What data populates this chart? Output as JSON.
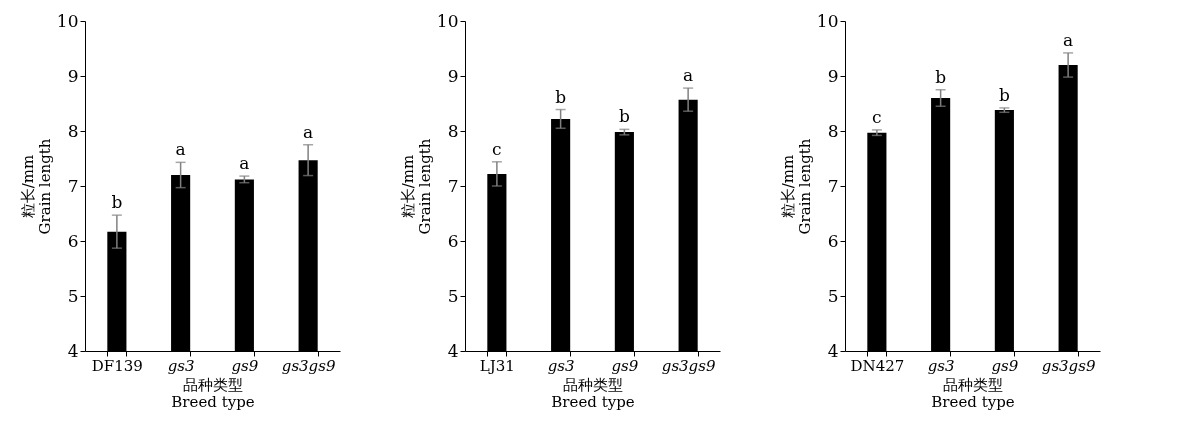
{
  "chart_data": [
    {
      "type": "bar",
      "categories": [
        "DF139",
        "gs3",
        "gs9",
        "gs3gs9"
      ],
      "values": [
        6.17,
        7.2,
        7.12,
        7.47
      ],
      "errors": [
        0.3,
        0.23,
        0.06,
        0.28
      ],
      "color": "#000000",
      "xlabel": [
        "品种类型",
        "Breed type"
      ],
      "ylabel": [
        "粒长/mm",
        "Grain length"
      ],
      "ylim": [
        4,
        10
      ],
      "yticks": [
        4,
        5,
        6,
        7,
        8,
        9,
        10
      ],
      "grid": false,
      "annotations": [
        {
          "text": "b",
          "x": "DF139",
          "y": 6.47
        },
        {
          "text": "a",
          "x": "gs3",
          "y": 7.43
        },
        {
          "text": "a",
          "x": "gs9",
          "y": 7.18
        },
        {
          "text": "a",
          "x": "gs3gs9",
          "y": 7.75
        }
      ]
    },
    {
      "type": "bar",
      "categories": [
        "LJ31",
        "gs3",
        "gs9",
        "gs3gs9"
      ],
      "values": [
        7.22,
        8.22,
        7.98,
        8.57
      ],
      "errors": [
        0.22,
        0.17,
        0.05,
        0.21
      ],
      "color": "#000000",
      "xlabel": [
        "品种类型",
        "Breed type"
      ],
      "ylabel": [
        "粒长/mm",
        "Grain length"
      ],
      "ylim": [
        4,
        10
      ],
      "yticks": [
        4,
        5,
        6,
        7,
        8,
        9,
        10
      ],
      "grid": false,
      "annotations": [
        {
          "text": "c",
          "x": "LJ31",
          "y": 7.44
        },
        {
          "text": "b",
          "x": "gs3",
          "y": 8.39
        },
        {
          "text": "b",
          "x": "gs9",
          "y": 8.03
        },
        {
          "text": "a",
          "x": "gs3gs9",
          "y": 8.78
        }
      ]
    },
    {
      "type": "bar",
      "categories": [
        "DN427",
        "gs3",
        "gs9",
        "gs3gs9"
      ],
      "values": [
        7.97,
        8.6,
        8.38,
        9.2
      ],
      "errors": [
        0.05,
        0.15,
        0.04,
        0.22
      ],
      "color": "#000000",
      "xlabel": [
        "品种类型",
        "Breed type"
      ],
      "ylabel": [
        "粒长/mm",
        "Grain length"
      ],
      "ylim": [
        4,
        10
      ],
      "yticks": [
        4,
        5,
        6,
        7,
        8,
        9,
        10
      ],
      "grid": false,
      "annotations": [
        {
          "text": "c",
          "x": "DN427",
          "y": 8.02
        },
        {
          "text": "b",
          "x": "gs3",
          "y": 8.75
        },
        {
          "text": "b",
          "x": "gs9",
          "y": 8.42
        },
        {
          "text": "a",
          "x": "gs3gs9",
          "y": 9.42
        }
      ]
    }
  ]
}
